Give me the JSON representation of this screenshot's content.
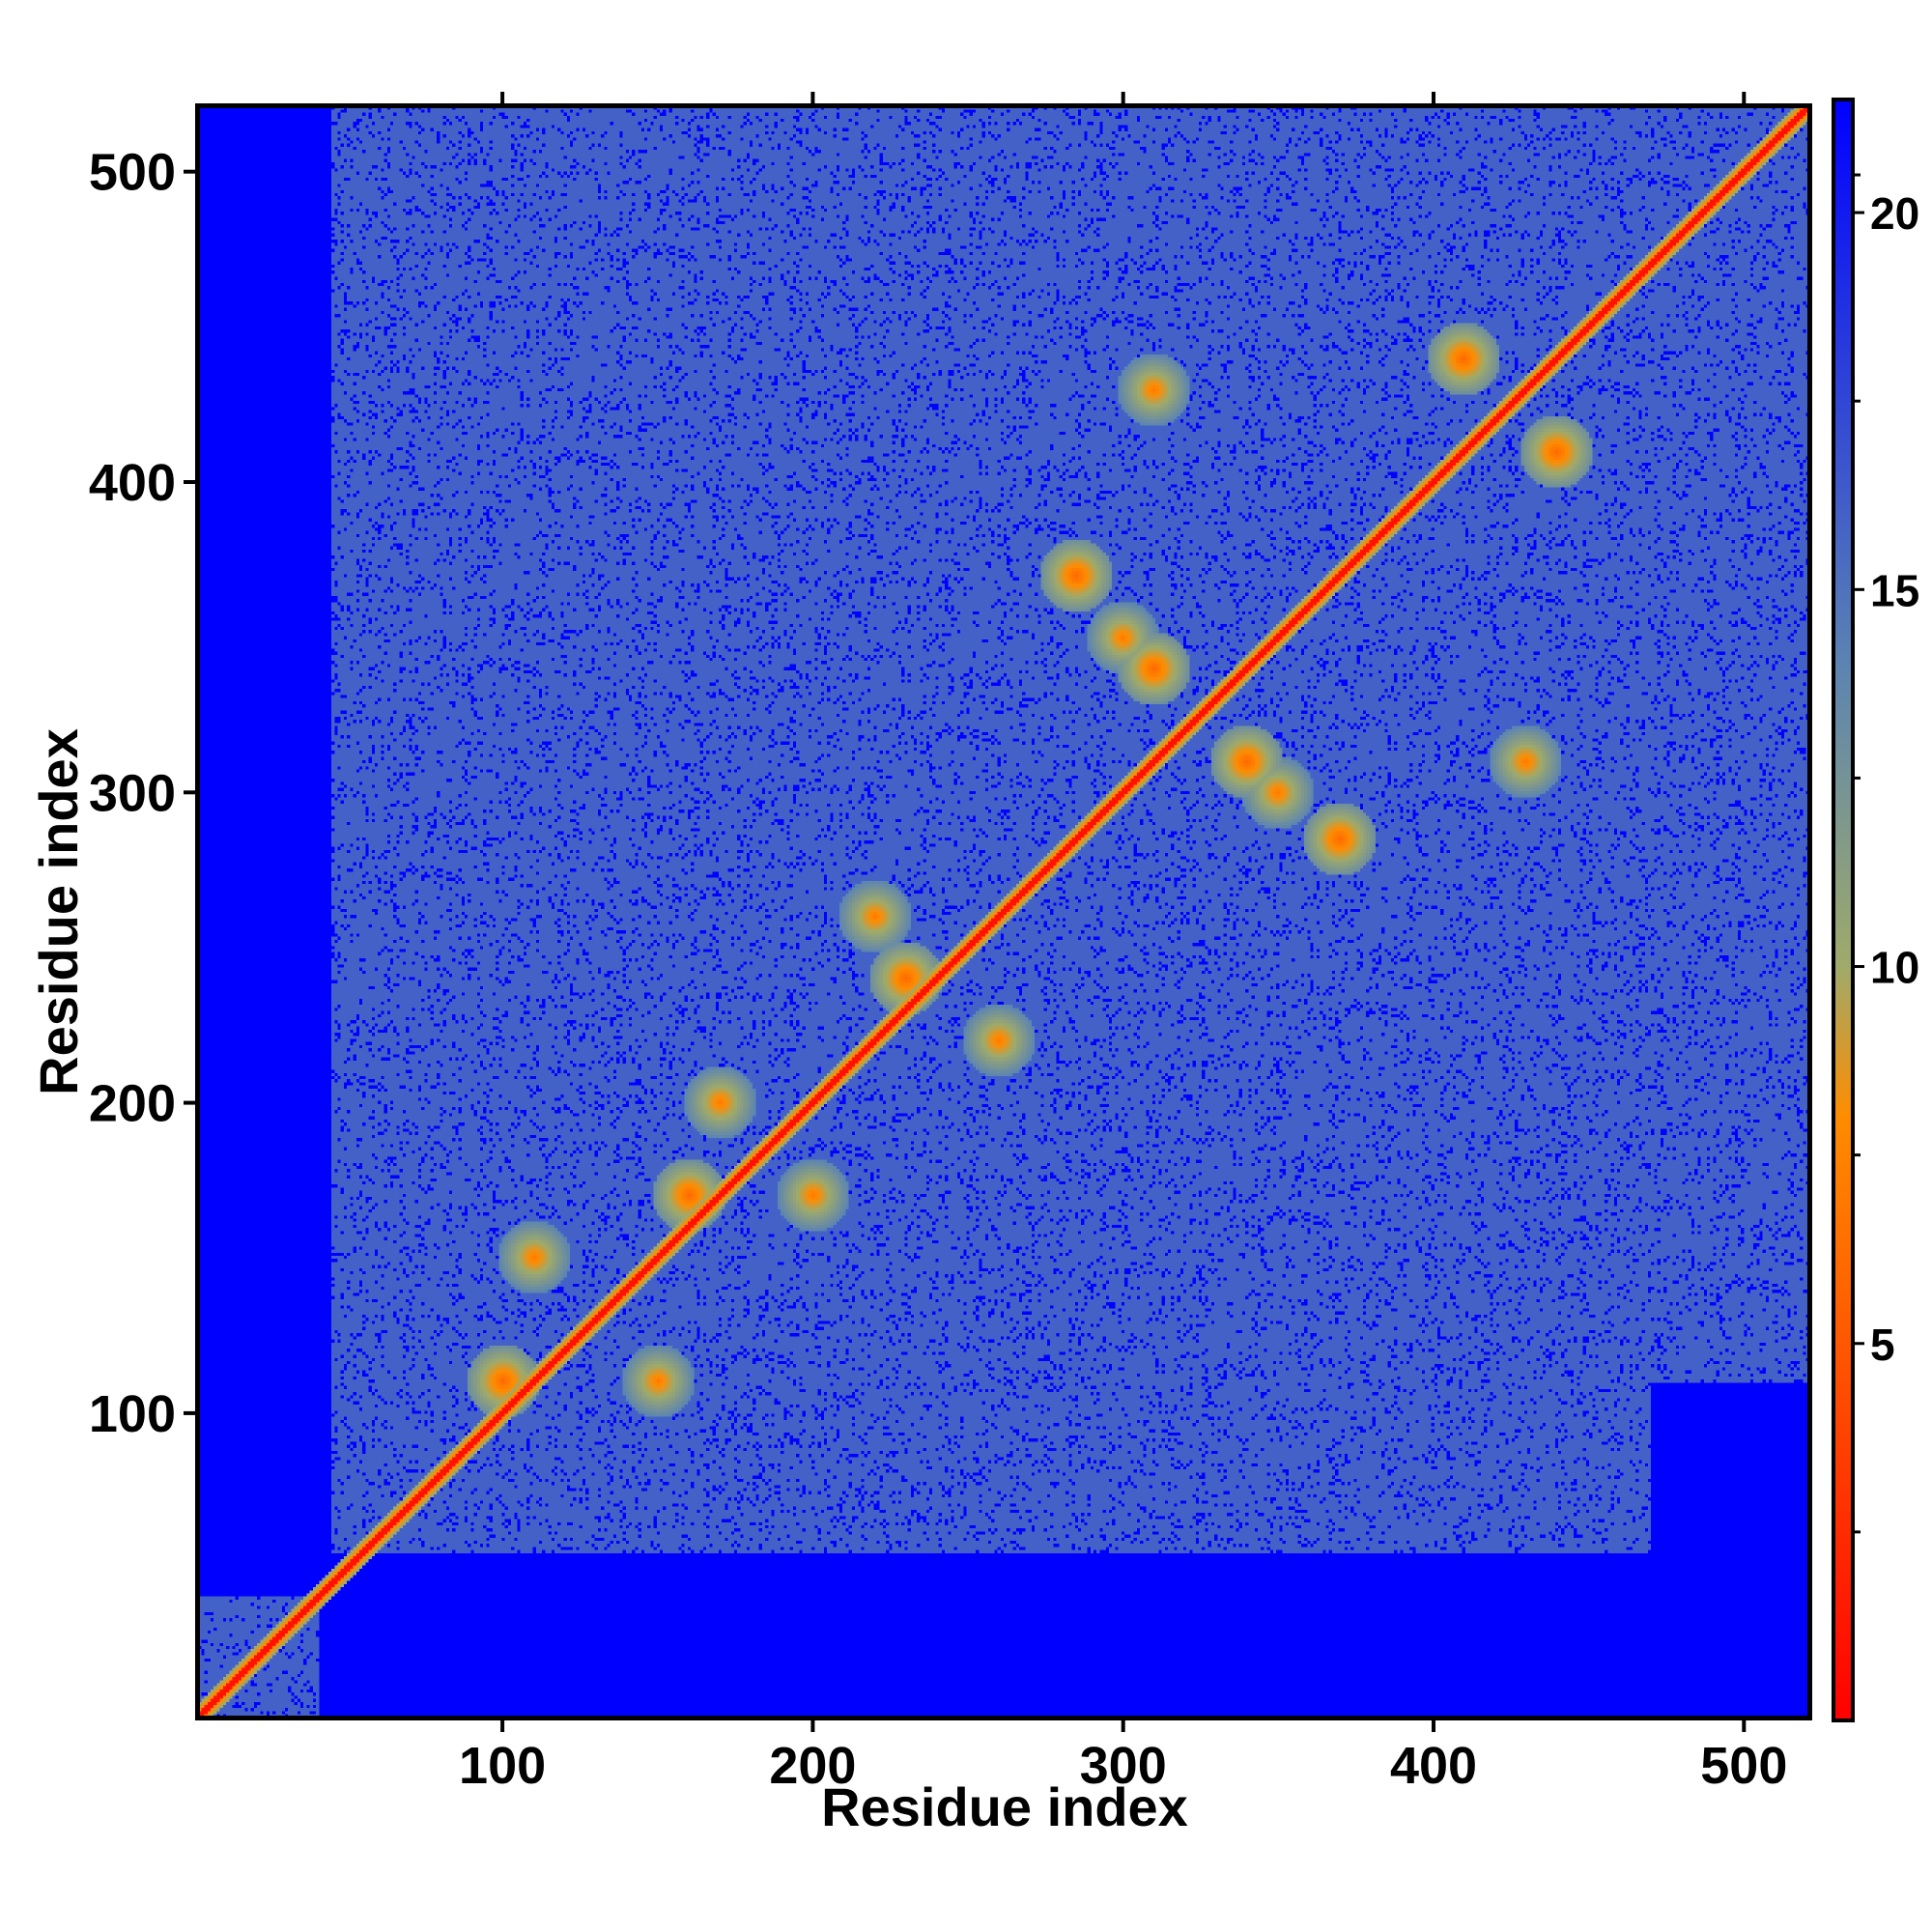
{
  "chart_data": {
    "type": "heatmap",
    "title": "",
    "xlabel": "Residue index",
    "ylabel": "Residue index",
    "xlim": [
      1,
      522
    ],
    "ylim": [
      1,
      522
    ],
    "x_ticks": [
      100,
      200,
      300,
      400,
      500
    ],
    "y_ticks": [
      100,
      200,
      300,
      400,
      500
    ],
    "grid": false,
    "colorbar": {
      "ticks": [
        5,
        10,
        15,
        20
      ],
      "range": [
        0,
        21.5
      ],
      "colors": [
        {
          "value": 0,
          "color": "#ff0000"
        },
        {
          "value": 8,
          "color": "#ff8c00"
        },
        {
          "value": 10,
          "color": "#9faa6a"
        },
        {
          "value": 14,
          "color": "#5b84b2"
        },
        {
          "value": 21.5,
          "color": "#0000ff"
        }
      ]
    },
    "description_values": {
      "diagonal_distance": 0,
      "background_distance": 21.5,
      "lower_left_region_distance": 21.5,
      "interior_distance": 16
    },
    "contact_features": [
      {
        "x": 410,
        "y": 440,
        "value": 6
      },
      {
        "x": 440,
        "y": 410,
        "value": 6
      },
      {
        "x": 310,
        "y": 340,
        "value": 6
      },
      {
        "x": 340,
        "y": 310,
        "value": 6
      },
      {
        "x": 285,
        "y": 370,
        "value": 6
      },
      {
        "x": 370,
        "y": 285,
        "value": 6
      },
      {
        "x": 230,
        "y": 240,
        "value": 6
      },
      {
        "x": 160,
        "y": 170,
        "value": 6
      },
      {
        "x": 100,
        "y": 110,
        "value": 6
      },
      {
        "x": 150,
        "y": 110,
        "value": 7
      },
      {
        "x": 110,
        "y": 150,
        "value": 7
      },
      {
        "x": 200,
        "y": 170,
        "value": 7
      },
      {
        "x": 170,
        "y": 200,
        "value": 7
      },
      {
        "x": 260,
        "y": 220,
        "value": 7
      },
      {
        "x": 220,
        "y": 260,
        "value": 7
      },
      {
        "x": 310,
        "y": 430,
        "value": 7
      },
      {
        "x": 430,
        "y": 310,
        "value": 7
      },
      {
        "x": 350,
        "y": 300,
        "value": 7
      },
      {
        "x": 300,
        "y": 350,
        "value": 7
      }
    ]
  }
}
